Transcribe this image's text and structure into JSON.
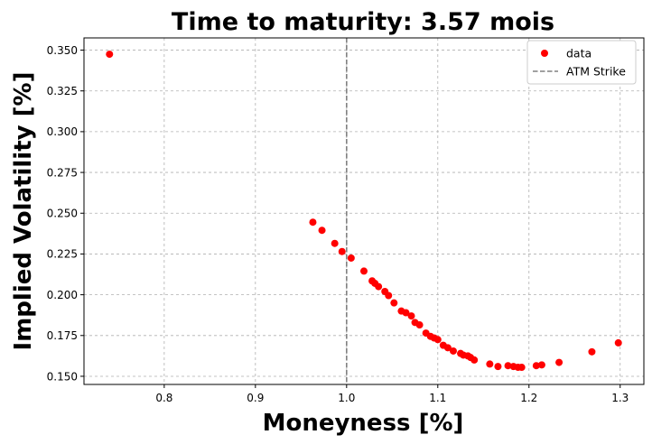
{
  "chart_data": {
    "type": "scatter",
    "title": "Time to maturity: 3.57 mois",
    "xlabel": "Moneyness [%]",
    "ylabel": "Implied Volatility [%]",
    "xlim": [
      0.712,
      1.326
    ],
    "ylim": [
      0.145,
      0.3575
    ],
    "xticks": [
      0.8,
      0.9,
      1.0,
      1.1,
      1.2,
      1.3
    ],
    "xtick_labels": [
      "0.8",
      "0.9",
      "1.0",
      "1.1",
      "1.2",
      "1.3"
    ],
    "yticks": [
      0.15,
      0.175,
      0.2,
      0.225,
      0.25,
      0.275,
      0.3,
      0.325,
      0.35
    ],
    "ytick_labels": [
      "0.150",
      "0.175",
      "0.200",
      "0.225",
      "0.250",
      "0.275",
      "0.300",
      "0.325",
      "0.350"
    ],
    "grid": true,
    "legend_position": "top-right",
    "series": [
      {
        "name": "data",
        "color": "#ff0000",
        "marker": "circle",
        "points": [
          [
            0.74,
            0.3475
          ],
          [
            0.963,
            0.2445
          ],
          [
            0.973,
            0.2395
          ],
          [
            0.987,
            0.2315
          ],
          [
            0.995,
            0.2265
          ],
          [
            1.005,
            0.2225
          ],
          [
            1.019,
            0.2145
          ],
          [
            1.028,
            0.2085
          ],
          [
            1.031,
            0.207
          ],
          [
            1.035,
            0.205
          ],
          [
            1.042,
            0.202
          ],
          [
            1.046,
            0.1995
          ],
          [
            1.052,
            0.195
          ],
          [
            1.06,
            0.19
          ],
          [
            1.065,
            0.189
          ],
          [
            1.071,
            0.187
          ],
          [
            1.075,
            0.183
          ],
          [
            1.08,
            0.1815
          ],
          [
            1.087,
            0.1765
          ],
          [
            1.092,
            0.1745
          ],
          [
            1.096,
            0.1735
          ],
          [
            1.1,
            0.1725
          ],
          [
            1.106,
            0.169
          ],
          [
            1.111,
            0.1675
          ],
          [
            1.117,
            0.1655
          ],
          [
            1.125,
            0.164
          ],
          [
            1.128,
            0.163
          ],
          [
            1.133,
            0.1625
          ],
          [
            1.136,
            0.1615
          ],
          [
            1.14,
            0.16
          ],
          [
            1.157,
            0.1575
          ],
          [
            1.166,
            0.156
          ],
          [
            1.177,
            0.1565
          ],
          [
            1.183,
            0.156
          ],
          [
            1.188,
            0.1555
          ],
          [
            1.192,
            0.1555
          ],
          [
            1.208,
            0.1565
          ],
          [
            1.214,
            0.157
          ],
          [
            1.233,
            0.1585
          ],
          [
            1.269,
            0.165
          ],
          [
            1.298,
            0.1705
          ]
        ]
      },
      {
        "name": "ATM Strike",
        "type": "vline",
        "x": 1.0,
        "color": "#808080",
        "linestyle": "dashed"
      }
    ]
  }
}
